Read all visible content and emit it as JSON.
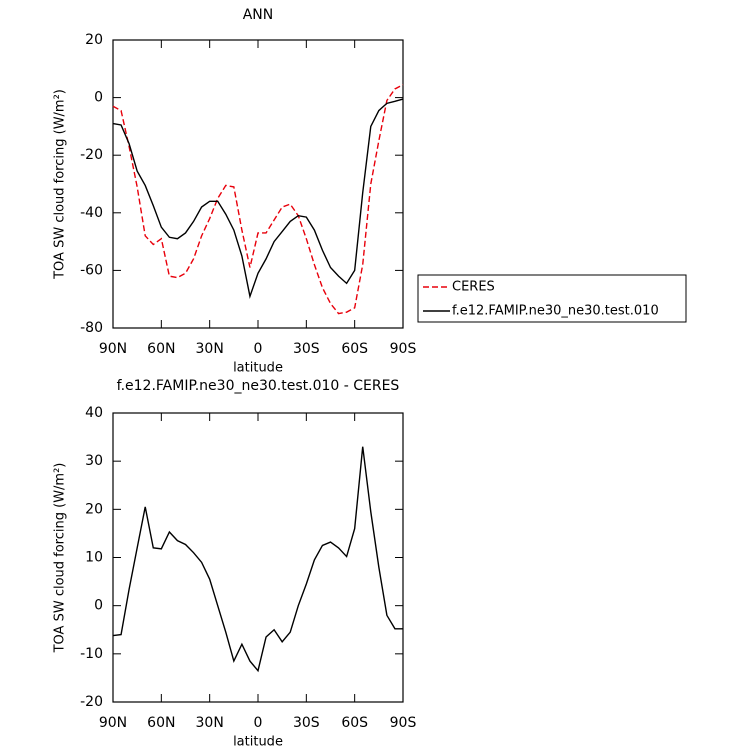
{
  "chart_data": [
    {
      "type": "line",
      "title": "ANN",
      "xlabel": "latitude",
      "ylabel": "TOA SW cloud forcing (W/m²)",
      "x": [
        90,
        85,
        80,
        75,
        70,
        65,
        60,
        55,
        50,
        45,
        40,
        35,
        30,
        25,
        20,
        15,
        10,
        5,
        0,
        -5,
        -10,
        -15,
        -20,
        -25,
        -30,
        -35,
        -40,
        -45,
        -50,
        -55,
        -60,
        -65,
        -70,
        -75,
        -80,
        -85,
        -90
      ],
      "xlim": [
        90,
        -90
      ],
      "xticks": [
        {
          "value": 90,
          "label": "90N"
        },
        {
          "value": 60,
          "label": "60N"
        },
        {
          "value": 30,
          "label": "30N"
        },
        0,
        {
          "value": -30,
          "label": "30S"
        },
        {
          "value": -60,
          "label": "60S"
        },
        {
          "value": -90,
          "label": "90S"
        }
      ],
      "ylim": [
        -80,
        20
      ],
      "yticks": [
        -80,
        -60,
        -40,
        -20,
        0,
        20
      ],
      "legend": "right",
      "series": [
        {
          "name": "CERES",
          "color": "#e8000b",
          "dashed": true,
          "values": [
            -3,
            -4.5,
            -17,
            -31,
            -48,
            -51,
            -49,
            -62,
            -62.5,
            -61,
            -56,
            -48,
            -42,
            -35,
            -30.5,
            -31,
            -46,
            -59,
            -47,
            -47,
            -42.5,
            -38,
            -37,
            -41,
            -49,
            -58,
            -66,
            -71.5,
            -75,
            -74.5,
            -73,
            -58,
            -30,
            -15,
            -1,
            3,
            4.5
          ]
        },
        {
          "name": "f.e12.FAMIP.ne30_ne30.test.010",
          "color": "#000000",
          "dashed": false,
          "values": [
            -9,
            -9.5,
            -16,
            -25.5,
            -30.5,
            -37.5,
            -45,
            -48.5,
            -49,
            -47,
            -43,
            -38,
            -36,
            -36,
            -40.5,
            -46,
            -55,
            -69,
            -61,
            -56,
            -50,
            -46.5,
            -43,
            -41,
            -41.5,
            -46,
            -53,
            -59,
            -62,
            -64.5,
            -60,
            -33,
            -10,
            -4.5,
            -2,
            -1.3,
            -0.5
          ]
        }
      ]
    },
    {
      "type": "line",
      "title": "f.e12.FAMIP.ne30_ne30.test.010 - CERES",
      "xlabel": "latitude",
      "ylabel": "TOA SW cloud forcing (W/m²)",
      "x": [
        90,
        85,
        80,
        75,
        70,
        65,
        60,
        55,
        50,
        45,
        40,
        35,
        30,
        25,
        20,
        15,
        10,
        5,
        0,
        -5,
        -10,
        -15,
        -20,
        -25,
        -30,
        -35,
        -40,
        -45,
        -50,
        -55,
        -60,
        -65,
        -70,
        -75,
        -80,
        -85,
        -90
      ],
      "xlim": [
        90,
        -90
      ],
      "xticks": [
        {
          "value": 90,
          "label": "90N"
        },
        {
          "value": 60,
          "label": "60N"
        },
        {
          "value": 30,
          "label": "30N"
        },
        0,
        {
          "value": -30,
          "label": "30S"
        },
        {
          "value": -60,
          "label": "60S"
        },
        {
          "value": -90,
          "label": "90S"
        }
      ],
      "ylim": [
        -20,
        40
      ],
      "yticks": [
        -20,
        -10,
        0,
        10,
        20,
        30,
        40
      ],
      "series": [
        {
          "color": "#000000",
          "dashed": false,
          "values": [
            -6.2,
            -6,
            3.4,
            12,
            20.5,
            12,
            11.8,
            15.3,
            13.5,
            12.7,
            11,
            9,
            5.5,
            0,
            -5.5,
            -11.5,
            -8,
            -11.5,
            -13.5,
            -6.5,
            -5,
            -7.5,
            -5.5,
            0,
            4.5,
            9.5,
            12.5,
            13.2,
            12,
            10.2,
            16,
            33,
            19.5,
            8,
            -2,
            -4.8,
            -4.8
          ]
        }
      ]
    }
  ]
}
